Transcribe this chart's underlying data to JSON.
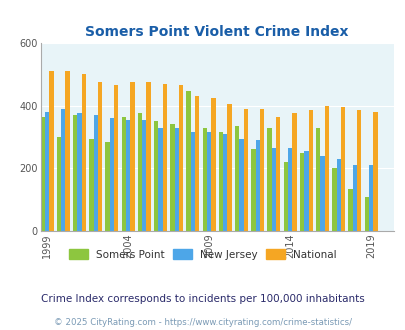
{
  "title": "Somers Point Violent Crime Index",
  "subtitle": "Crime Index corresponds to incidents per 100,000 inhabitants",
  "copyright": "© 2025 CityRating.com - https://www.cityrating.com/crime-statistics/",
  "years": [
    1999,
    2000,
    2001,
    2002,
    2003,
    2004,
    2005,
    2006,
    2007,
    2008,
    2009,
    2010,
    2011,
    2012,
    2013,
    2014,
    2015,
    2016,
    2017,
    2018,
    2019,
    2020
  ],
  "somers_point": [
    365,
    300,
    370,
    295,
    285,
    365,
    375,
    350,
    340,
    445,
    330,
    315,
    335,
    260,
    330,
    220,
    250,
    330,
    200,
    135,
    110,
    0
  ],
  "new_jersey": [
    380,
    390,
    375,
    370,
    360,
    355,
    355,
    330,
    330,
    315,
    315,
    310,
    295,
    290,
    265,
    265,
    255,
    240,
    230,
    210,
    210,
    0
  ],
  "national": [
    510,
    510,
    500,
    475,
    465,
    475,
    475,
    470,
    465,
    430,
    425,
    405,
    390,
    390,
    365,
    375,
    385,
    400,
    395,
    385,
    380,
    0
  ],
  "colors": {
    "somers_point": "#8dc63f",
    "new_jersey": "#4da6e8",
    "national": "#f5a623",
    "background": "#e8f4f8",
    "title": "#1a5ea8",
    "subtitle": "#2a2a6a",
    "copyright": "#7a9ab5"
  },
  "ylim": [
    0,
    600
  ],
  "yticks": [
    0,
    200,
    400,
    600
  ],
  "xticks": [
    1999,
    2004,
    2009,
    2014,
    2019
  ],
  "bar_width": 0.27
}
